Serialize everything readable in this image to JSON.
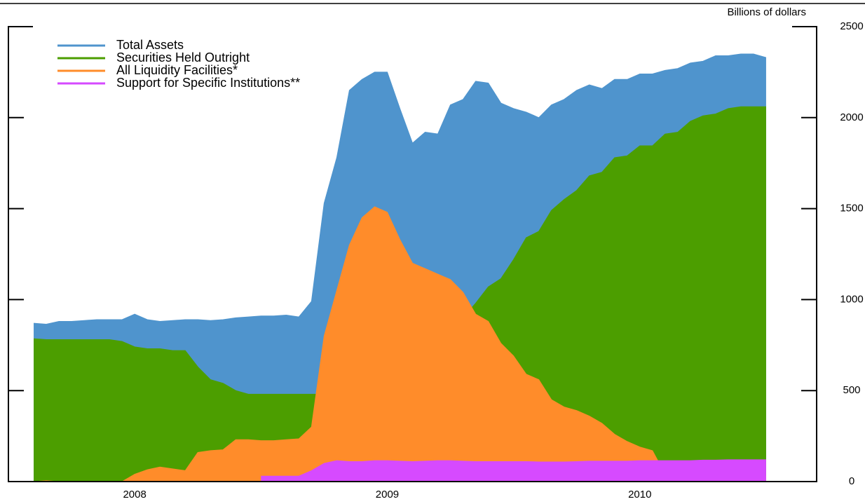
{
  "chart_data": {
    "type": "area",
    "y_axis_label": "Billions of dollars",
    "xlim": [
      2007.5,
      2010.7
    ],
    "xticks": [
      2008,
      2009,
      2010
    ],
    "ylim": [
      0,
      2500
    ],
    "yticks": [
      0,
      500,
      1000,
      1500,
      2000,
      2500
    ],
    "x": [
      2007.6,
      2007.65,
      2007.7,
      2007.75,
      2007.8,
      2007.85,
      2007.9,
      2007.95,
      2008.0,
      2008.05,
      2008.1,
      2008.15,
      2008.2,
      2008.25,
      2008.3,
      2008.35,
      2008.4,
      2008.45,
      2008.5,
      2008.55,
      2008.6,
      2008.65,
      2008.7,
      2008.75,
      2008.8,
      2008.85,
      2008.9,
      2008.95,
      2009.0,
      2009.05,
      2009.1,
      2009.15,
      2009.2,
      2009.25,
      2009.3,
      2009.35,
      2009.4,
      2009.45,
      2009.5,
      2009.55,
      2009.6,
      2009.65,
      2009.7,
      2009.75,
      2009.8,
      2009.85,
      2009.9,
      2009.95,
      2010.0,
      2010.05,
      2010.1,
      2010.15,
      2010.2,
      2010.25,
      2010.3,
      2010.35,
      2010.4,
      2010.45,
      2010.5
    ],
    "series": [
      {
        "name": "Total Assets",
        "color": "#4f94cd",
        "values": [
          870,
          865,
          880,
          880,
          885,
          890,
          890,
          890,
          920,
          890,
          880,
          885,
          890,
          890,
          885,
          890,
          900,
          905,
          910,
          910,
          915,
          905,
          990,
          1530,
          1780,
          2150,
          2210,
          2250,
          2250,
          2050,
          1860,
          1920,
          1910,
          2070,
          2100,
          2200,
          2190,
          2080,
          2050,
          2030,
          2000,
          2070,
          2100,
          2150,
          2180,
          2160,
          2210,
          2210,
          2240,
          2240,
          2260,
          2270,
          2300,
          2310,
          2340,
          2340,
          2350,
          2350,
          2330
        ]
      },
      {
        "name": "Securities Held Outright",
        "color": "#4c9e00",
        "values": [
          785,
          780,
          780,
          780,
          780,
          780,
          780,
          770,
          740,
          730,
          730,
          720,
          720,
          630,
          560,
          540,
          500,
          480,
          480,
          480,
          480,
          480,
          480,
          480,
          480,
          480,
          480,
          480,
          480,
          500,
          550,
          620,
          700,
          800,
          900,
          980,
          1070,
          1115,
          1220,
          1340,
          1375,
          1490,
          1550,
          1600,
          1680,
          1700,
          1780,
          1790,
          1845,
          1845,
          1910,
          1920,
          1980,
          2010,
          2020,
          2050,
          2060,
          2060,
          2060
        ]
      },
      {
        "name": "All Liquidity Facilities*",
        "color": "#ff8c2a",
        "values": [
          0,
          5,
          0,
          0,
          0,
          0,
          0,
          0,
          40,
          65,
          80,
          70,
          60,
          160,
          170,
          175,
          230,
          230,
          225,
          225,
          230,
          235,
          300,
          800,
          1050,
          1300,
          1450,
          1510,
          1480,
          1330,
          1200,
          1170,
          1140,
          1110,
          1040,
          920,
          880,
          760,
          690,
          590,
          560,
          450,
          410,
          390,
          360,
          320,
          260,
          220,
          190,
          170,
          40,
          30,
          30,
          30,
          30,
          30,
          30,
          30,
          30
        ]
      },
      {
        "name": "Support for Specific Institutions**",
        "color": "#d64aff",
        "values": [
          null,
          null,
          null,
          null,
          null,
          null,
          null,
          null,
          null,
          null,
          null,
          null,
          null,
          null,
          null,
          null,
          null,
          null,
          30,
          30,
          30,
          30,
          60,
          100,
          115,
          110,
          110,
          115,
          115,
          112,
          110,
          112,
          115,
          115,
          112,
          110,
          110,
          110,
          110,
          110,
          108,
          108,
          108,
          110,
          112,
          112,
          112,
          112,
          115,
          115,
          115,
          115,
          115,
          118,
          118,
          120,
          120,
          120,
          120
        ]
      }
    ]
  }
}
